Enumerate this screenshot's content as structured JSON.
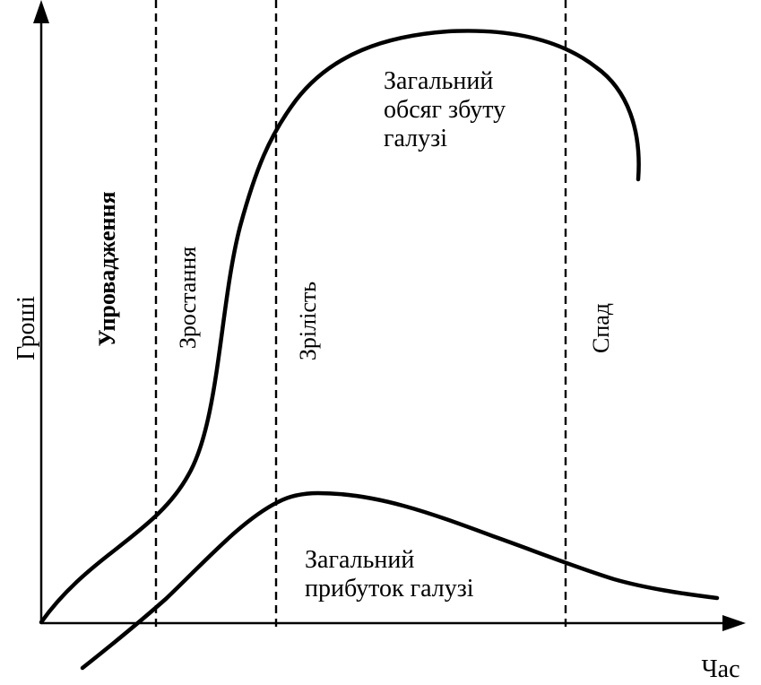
{
  "axes": {
    "y_label": "Гроші",
    "x_label": "Час"
  },
  "stages": [
    {
      "label": "Упровадження",
      "bold": true
    },
    {
      "label": "Зростання",
      "bold": false
    },
    {
      "label": "Зрілість",
      "bold": false
    },
    {
      "label": "Спад",
      "bold": false
    }
  ],
  "curves": {
    "sales": {
      "label_lines": [
        "Загальний",
        "обсяг збуту",
        "галузі"
      ]
    },
    "profit": {
      "label_lines": [
        "Загальний",
        "прибуток галузі"
      ]
    }
  },
  "colors": {
    "ink": "#000000",
    "background": "#ffffff"
  }
}
